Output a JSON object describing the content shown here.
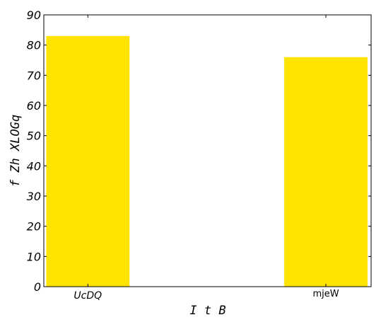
{
  "chart_data": {
    "type": "bar",
    "categories": [
      "UcDQ",
      "mjeW"
    ],
    "values": [
      83,
      76
    ],
    "xlabel": "I t B",
    "ylabel": "f Zh XLOGq",
    "ylim": [
      0,
      90
    ],
    "yticks": [
      "0",
      "10",
      "20",
      "30",
      "40",
      "50",
      "60",
      "70",
      "80",
      "90"
    ],
    "grid": false,
    "bar_color": "#ffe400"
  }
}
